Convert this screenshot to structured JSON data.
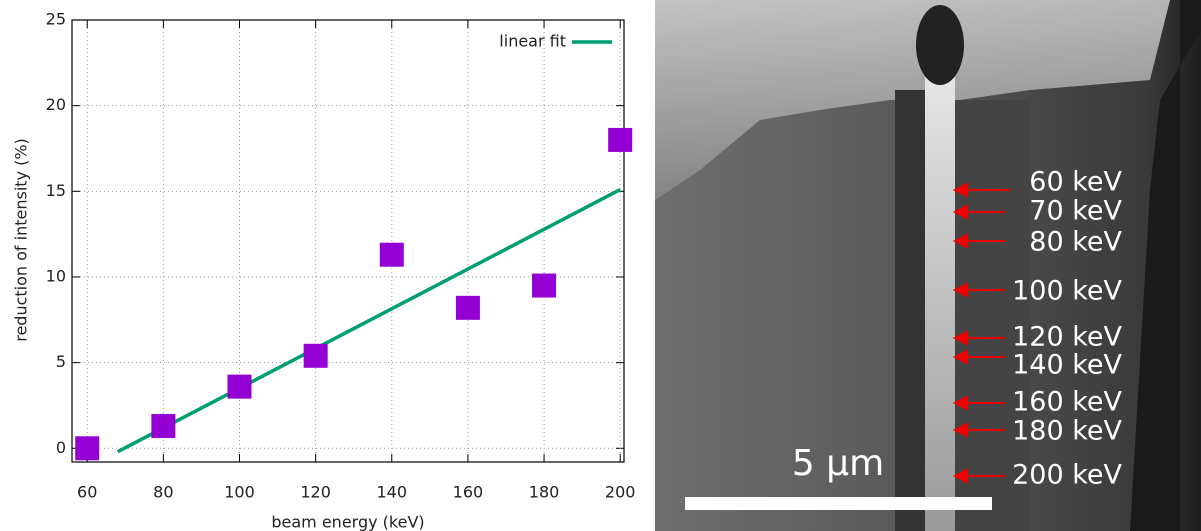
{
  "chart_data": {
    "type": "scatter",
    "x_label": "beam energy (keV)",
    "y_label": "reduction of intensity (%)",
    "x": [
      60,
      80,
      100,
      120,
      140,
      160,
      180,
      200
    ],
    "series": [
      {
        "color": "#9400d3",
        "marker": "square",
        "values": [
          0,
          1.3,
          3.6,
          5.4,
          11.3,
          8.2,
          9.5,
          18.0
        ]
      }
    ],
    "fit": {
      "name": "linear fit",
      "color": "#009e73",
      "x": [
        68,
        200
      ],
      "values": [
        -0.2,
        15.1
      ]
    },
    "xlim": [
      56,
      201
    ],
    "ylim": [
      -0.8,
      25
    ],
    "xticks": [
      60,
      80,
      100,
      120,
      140,
      160,
      180,
      200
    ],
    "yticks": [
      0,
      5,
      10,
      15,
      20,
      25
    ],
    "grid": true,
    "legend": "top-right"
  },
  "image": {
    "labels": [
      "60 keV",
      "70 keV",
      "80 keV",
      "100 keV",
      "120 keV",
      "140 keV",
      "160 keV",
      "180 keV",
      "200 keV"
    ],
    "scale_bar": "5 µm"
  }
}
